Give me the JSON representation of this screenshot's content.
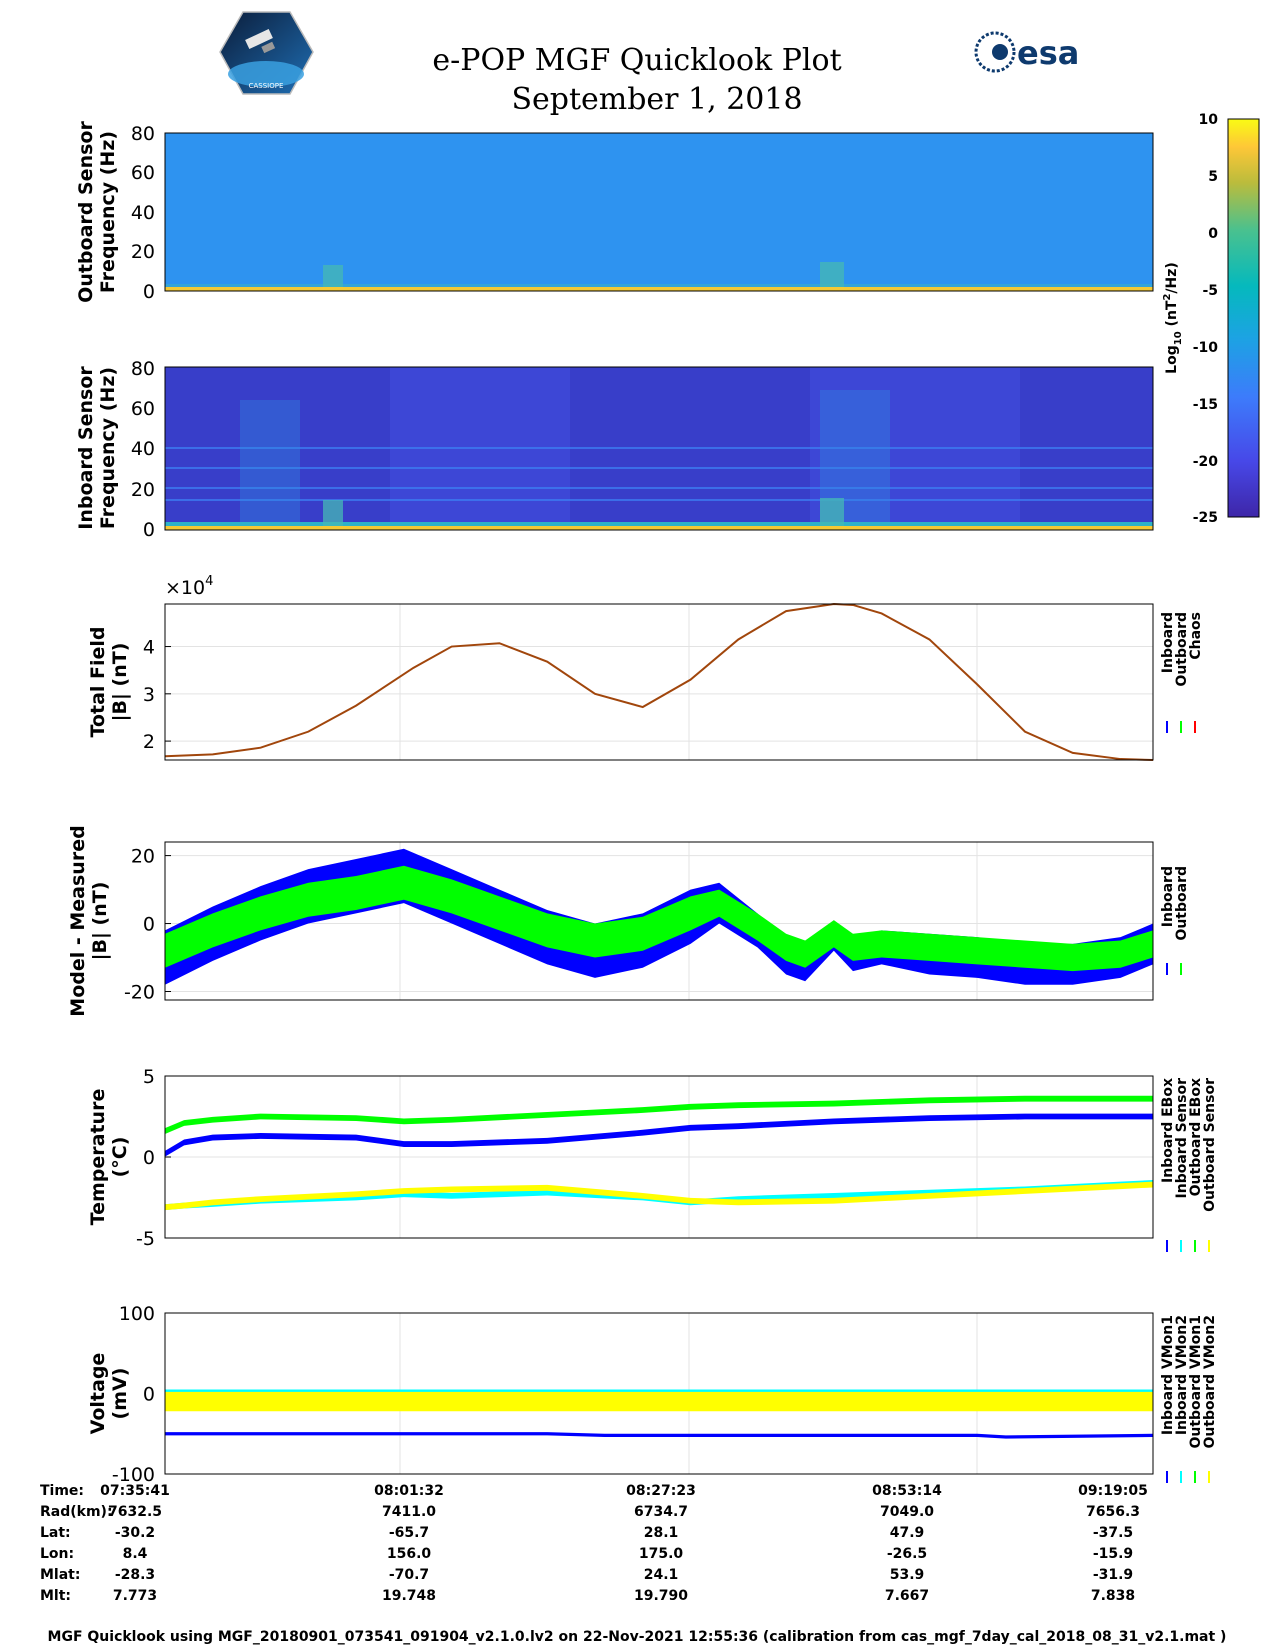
{
  "header": {
    "title": "e-POP MGF Quicklook Plot",
    "date": "September 1, 2018",
    "logo_left_text": "CASSIOPE",
    "logo_right_text": "esa"
  },
  "colorbar": {
    "ticks": [
      "10",
      "5",
      "0",
      "-5",
      "-10",
      "-15",
      "-20",
      "-25"
    ],
    "label_base": "Log",
    "label_sub": "10",
    "label_unit_a": " (nT",
    "label_sup": "2",
    "label_unit_b": "/Hz)",
    "colors": [
      "#f9fb0e",
      "#fec537",
      "#48bcaa",
      "#05b8bd",
      "#1ca2e2",
      "#3b8cf7",
      "#4766ee",
      "#3e2da3"
    ]
  },
  "spectrograms": [
    {
      "ylabel_line1": "Outboard Sensor",
      "ylabel_line2": "Frequency (Hz)",
      "yticks": [
        "80",
        "60",
        "40",
        "20",
        "0"
      ],
      "ylim": [
        0,
        80
      ],
      "background_color": "#2e93f0"
    },
    {
      "ylabel_line1": "Inboard Sensor",
      "ylabel_line2": "Frequency (Hz)",
      "yticks": [
        "80",
        "60",
        "40",
        "20",
        "0"
      ],
      "ylim": [
        0,
        80
      ],
      "background_color": "#3d47d6"
    }
  ],
  "chart_data": [
    {
      "type": "line",
      "title": "Total Field",
      "ylabel_line1": "Total Field",
      "ylabel_line2": "|B| (nT)",
      "exponent_label": "×10",
      "exponent_power": "4",
      "yticks": [
        "4",
        "3",
        "2"
      ],
      "ylim": [
        1.6,
        4.9
      ],
      "legend": [
        "Inboard",
        "Outboard",
        "Chaos"
      ],
      "legend_colors": [
        "#0000ff",
        "#00ff00",
        "#ff0000"
      ],
      "x_minutes": [
        0,
        5,
        10,
        15,
        20,
        26,
        30,
        35,
        40,
        45,
        50,
        55,
        60,
        65,
        70,
        72,
        75,
        80,
        85,
        90,
        95,
        100,
        103.4
      ],
      "series": [
        {
          "name": "Chaos",
          "color": "#a1460c",
          "values": [
            1.68,
            1.72,
            1.86,
            2.2,
            2.75,
            3.55,
            4.0,
            4.07,
            3.68,
            3.0,
            2.72,
            3.3,
            4.15,
            4.75,
            4.9,
            4.88,
            4.7,
            4.15,
            3.2,
            2.2,
            1.75,
            1.62,
            1.6
          ]
        }
      ]
    },
    {
      "type": "line",
      "title": "Model - Measured",
      "ylabel_line1": "Model - Measured",
      "ylabel_line2": "|B| (nT)",
      "yticks": [
        "20",
        "0",
        "-20"
      ],
      "ylim": [
        -22.5,
        24
      ],
      "legend": [
        "Inboard",
        "Outboard"
      ],
      "legend_colors": [
        "#0000ff",
        "#00ff00"
      ],
      "x_minutes": [
        0,
        5,
        10,
        15,
        20,
        25,
        30,
        35,
        40,
        45,
        50,
        55,
        58,
        62,
        65,
        67,
        70,
        72,
        75,
        80,
        85,
        90,
        95,
        100,
        103.4
      ],
      "series": [
        {
          "name": "Inboard",
          "color": "#0000ff",
          "center": [
            -10,
            -3,
            3,
            8,
            11,
            14,
            8,
            2,
            -4,
            -8,
            -5,
            2,
            6,
            -2,
            -10,
            -12,
            -4,
            -9,
            -7,
            -9,
            -10,
            -12,
            -12,
            -10,
            -6
          ],
          "spread": [
            8,
            8,
            8,
            8,
            8,
            8,
            8,
            8,
            8,
            8,
            8,
            8,
            6,
            5,
            5,
            5,
            4,
            5,
            5,
            6,
            6,
            6,
            6,
            6,
            6
          ]
        },
        {
          "name": "Outboard",
          "color": "#00ff00",
          "center": [
            -8,
            -2,
            3,
            7,
            9,
            12,
            8,
            3,
            -2,
            -5,
            -3,
            3,
            6,
            -1,
            -7,
            -9,
            -3,
            -7,
            -6,
            -7,
            -8,
            -9,
            -10,
            -9,
            -6
          ],
          "spread": [
            5,
            5,
            5,
            5,
            5,
            5,
            5,
            5,
            5,
            5,
            5,
            5,
            4,
            4,
            4,
            4,
            4,
            4,
            4,
            4,
            4,
            4,
            4,
            4,
            4
          ]
        }
      ]
    },
    {
      "type": "line",
      "title": "Temperature",
      "ylabel_line1": "Temperature",
      "ylabel_line2": "(°C)",
      "yticks": [
        "5",
        "0",
        "-5"
      ],
      "ylim": [
        -5,
        5
      ],
      "legend": [
        "Inboard EBox",
        "Inboard Sensor",
        "Outboard EBox",
        "Outboard Sensor"
      ],
      "legend_colors": [
        "#0000ff",
        "#00ffff",
        "#00ff00",
        "#ffff00"
      ],
      "x_minutes": [
        0,
        2,
        5,
        10,
        20,
        25,
        30,
        40,
        50,
        55,
        60,
        70,
        80,
        90,
        100,
        103.4
      ],
      "series": [
        {
          "name": "Inboard EBox",
          "color": "#0000ff",
          "values": [
            0.2,
            0.9,
            1.2,
            1.3,
            1.2,
            0.8,
            0.8,
            1.0,
            1.5,
            1.8,
            1.9,
            2.2,
            2.4,
            2.5,
            2.5,
            2.5
          ]
        },
        {
          "name": "Inboard Sensor",
          "color": "#00ffff",
          "values": [
            -3.1,
            -3.0,
            -2.9,
            -2.7,
            -2.5,
            -2.3,
            -2.4,
            -2.2,
            -2.5,
            -2.8,
            -2.6,
            -2.4,
            -2.2,
            -2.0,
            -1.7,
            -1.6
          ]
        },
        {
          "name": "Outboard EBox",
          "color": "#00ff00",
          "values": [
            1.6,
            2.1,
            2.3,
            2.5,
            2.4,
            2.2,
            2.3,
            2.6,
            2.9,
            3.1,
            3.2,
            3.3,
            3.5,
            3.6,
            3.6,
            3.6
          ]
        },
        {
          "name": "Outboard Sensor",
          "color": "#ffff00",
          "values": [
            -3.1,
            -3.0,
            -2.8,
            -2.6,
            -2.3,
            -2.1,
            -2.0,
            -1.9,
            -2.4,
            -2.7,
            -2.8,
            -2.7,
            -2.4,
            -2.1,
            -1.8,
            -1.7
          ]
        }
      ]
    },
    {
      "type": "line",
      "title": "Voltage",
      "ylabel_line1": "Voltage",
      "ylabel_line2": "(mV)",
      "yticks": [
        "100",
        "0",
        "-100"
      ],
      "ylim": [
        -100,
        100
      ],
      "legend": [
        "Inboard VMon1",
        "Inboard VMon2",
        "Outboard VMon1",
        "Outboard VMon2"
      ],
      "legend_colors": [
        "#0000ff",
        "#00ffff",
        "#00ff00",
        "#ffff00"
      ],
      "x_minutes": [
        0,
        26,
        40,
        46,
        85,
        88,
        103.4
      ],
      "series": [
        {
          "name": "Inboard VMon1",
          "color": "#0000ff",
          "values": [
            -50,
            -50,
            -50,
            -52,
            -52,
            -54,
            -52
          ]
        },
        {
          "name": "Inboard VMon2",
          "color": "#00ffff",
          "values": [
            3,
            3,
            3,
            3,
            3,
            3,
            3
          ]
        },
        {
          "name": "Outboard VMon1",
          "color": "#00ff00",
          "values": [
            -8,
            -8,
            -8,
            -8,
            -8,
            -8,
            -8
          ]
        },
        {
          "name": "Outboard VMon2",
          "color": "#ffff00",
          "values": [
            -10,
            -10,
            -10,
            -10,
            -10,
            -10,
            -10
          ]
        }
      ]
    }
  ],
  "info_table": {
    "row_labels": [
      "Time:",
      "Rad(km):",
      "Lat:",
      "Lon:",
      "Mlat:",
      "Mlt:"
    ],
    "columns": [
      [
        "07:35:41",
        "7632.5",
        "-30.2",
        "8.4",
        "-28.3",
        "7.773"
      ],
      [
        "08:01:32",
        "7411.0",
        "-65.7",
        "156.0",
        "-70.7",
        "19.748"
      ],
      [
        "08:27:23",
        "6734.7",
        "28.1",
        "175.0",
        "24.1",
        "19.790"
      ],
      [
        "08:53:14",
        "7049.0",
        "47.9",
        "-26.5",
        "53.9",
        "7.667"
      ],
      [
        "09:19:05",
        "7656.3",
        "-37.5",
        "-15.9",
        "-31.9",
        "7.838"
      ]
    ]
  },
  "footer": "MGF Quicklook using MGF_20180901_073541_091904_v2.1.0.lv2 on 22-Nov-2021 12:55:36 (calibration from cas_mgf_7day_cal_2018_08_31_v2.1.mat )"
}
